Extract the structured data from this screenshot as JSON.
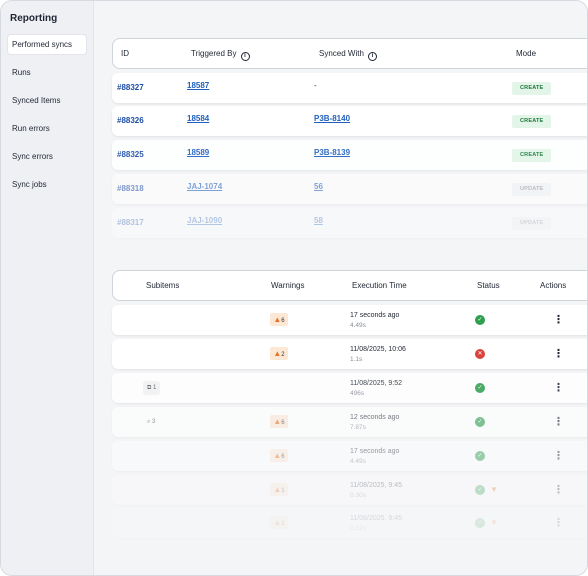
{
  "sidebar": {
    "title": "Reporting",
    "items": [
      {
        "label": "Performed syncs",
        "active": true
      },
      {
        "label": "Runs",
        "active": false
      },
      {
        "label": "Synced Items",
        "active": false
      },
      {
        "label": "Run errors",
        "active": false
      },
      {
        "label": "Sync errors",
        "active": false
      },
      {
        "label": "Sync jobs",
        "active": false
      }
    ]
  },
  "syncs_table": {
    "columns": {
      "id": "ID",
      "triggered_by": "Triggered By",
      "synced_with": "Synced With",
      "mode": "Mode"
    },
    "rows": [
      {
        "id": "#88327",
        "triggered_by": "18587",
        "synced_with": "-",
        "mode": "CREATE"
      },
      {
        "id": "#88326",
        "triggered_by": "18584",
        "synced_with": "P3B-8140",
        "mode": "CREATE"
      },
      {
        "id": "#88325",
        "triggered_by": "18589",
        "synced_with": "P3B-8139",
        "mode": "CREATE"
      },
      {
        "id": "#88318",
        "triggered_by": "JAJ-1074",
        "synced_with": "56",
        "mode": "UPDATE"
      },
      {
        "id": "#88317",
        "triggered_by": "JAJ-1090",
        "synced_with": "58",
        "mode": "UPDATE"
      }
    ]
  },
  "runs_table": {
    "columns": {
      "subitems": "Subitems",
      "warnings": "Warnings",
      "execution_time": "Execution Time",
      "status": "Status",
      "actions": "Actions"
    },
    "rows": [
      {
        "subitems": "",
        "warnings": "6",
        "time": "17 seconds ago",
        "duration": "4.49s",
        "status": "success"
      },
      {
        "subitems": "",
        "warnings": "2",
        "time": "11/08/2025, 10:06",
        "duration": "1.1s",
        "status": "error"
      },
      {
        "subitems": "1",
        "warnings": "",
        "time": "11/08/2025, 9:52",
        "duration": "496s",
        "status": "success"
      },
      {
        "subitems": "3",
        "warnings": "6",
        "time": "12 seconds ago",
        "duration": "7.87s",
        "status": "success"
      },
      {
        "subitems": "",
        "warnings": "6",
        "time": "17 seconds ago",
        "duration": "4.49s",
        "status": "success"
      },
      {
        "subitems": "",
        "warnings": "1",
        "time": "11/08/2025, 9:45",
        "duration": "0.30s",
        "status": "success"
      },
      {
        "subitems": "",
        "warnings": "1",
        "time": "11/08/2025, 9:45",
        "duration": "0.32s",
        "status": "success"
      }
    ]
  },
  "colors": {
    "accent": "#1d4ea6",
    "success": "#2f9e4f",
    "error": "#d9433b",
    "warning": "#e8742a"
  }
}
